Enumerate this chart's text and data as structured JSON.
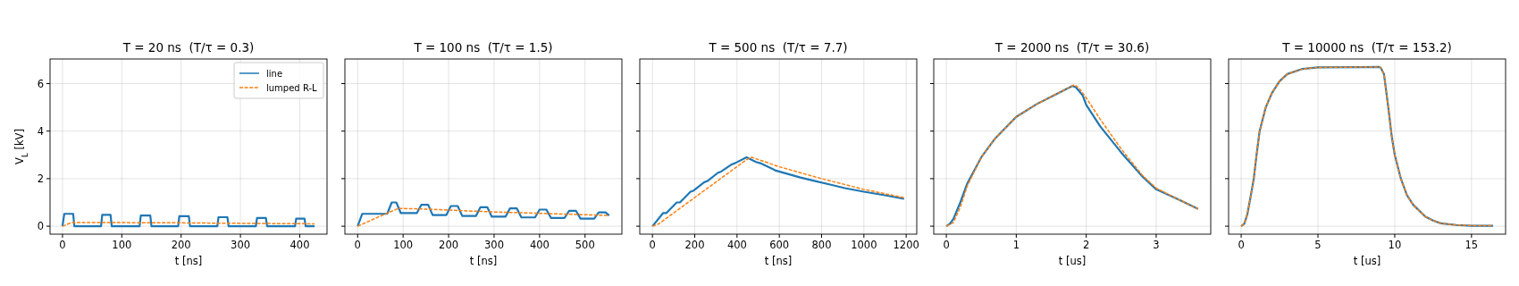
{
  "chart_data": [
    {
      "type": "line",
      "title": "T = 20 ns  (T/τ = 0.3)",
      "xlabel": "t [ns]",
      "ylabel": "V$_{L}$ [kV]",
      "xlim": [
        -21,
        446
      ],
      "ylim": [
        -0.335,
        7.035
      ],
      "xticks": [
        0,
        100,
        200,
        300,
        400
      ],
      "yticks": [
        0,
        2,
        4,
        6
      ],
      "grid": true,
      "legend": "top right",
      "series": [
        {
          "name": "line",
          "color": "#1f77b4",
          "line_style": "solid",
          "x": [
            0,
            3,
            18,
            20,
            65,
            67,
            81,
            83,
            130,
            132,
            148,
            150,
            195,
            197,
            213,
            215,
            261,
            263,
            278,
            280,
            326,
            328,
            343,
            345,
            392,
            394,
            408,
            410,
            425
          ],
          "values": [
            0,
            0.52,
            0.52,
            0,
            0,
            0.48,
            0.48,
            0,
            0,
            0.45,
            0.45,
            0,
            0,
            0.42,
            0.42,
            0,
            0,
            0.38,
            0.38,
            0,
            0,
            0.35,
            0.35,
            0,
            0,
            0.32,
            0.32,
            0,
            0
          ]
        },
        {
          "name": "lumped R-L",
          "color": "#ff7f0e",
          "line_style": "dashed",
          "x": [
            0,
            15,
            100,
            200,
            300,
            425
          ],
          "values": [
            0,
            0.15,
            0.15,
            0.14,
            0.12,
            0.1
          ]
        }
      ]
    },
    {
      "type": "line",
      "title": "T = 100 ns  (T/τ = 1.5)",
      "xlabel": "t [ns]",
      "xlim": [
        -28,
        581
      ],
      "ylim": [
        -0.335,
        7.035
      ],
      "xticks": [
        0,
        100,
        200,
        300,
        400,
        500
      ],
      "yticks": [
        0,
        2,
        4,
        6
      ],
      "grid": true,
      "tick_labels": "x",
      "series": [
        {
          "color": "#1f77b4",
          "line_style": "solid",
          "x": [
            0,
            10,
            65,
            75,
            85,
            95,
            130,
            140,
            155,
            165,
            195,
            205,
            220,
            230,
            260,
            270,
            285,
            295,
            325,
            335,
            350,
            360,
            390,
            400,
            415,
            425,
            455,
            465,
            480,
            490,
            520,
            530,
            545,
            553
          ],
          "values": [
            0,
            0.52,
            0.52,
            1.0,
            1.0,
            0.55,
            0.55,
            0.9,
            0.9,
            0.47,
            0.47,
            0.85,
            0.85,
            0.43,
            0.43,
            0.8,
            0.8,
            0.4,
            0.4,
            0.75,
            0.75,
            0.37,
            0.37,
            0.7,
            0.7,
            0.35,
            0.35,
            0.65,
            0.65,
            0.32,
            0.32,
            0.58,
            0.58,
            0.45
          ]
        },
        {
          "color": "#ff7f0e",
          "line_style": "dashed",
          "x": [
            0,
            65,
            90,
            150,
            300,
            553
          ],
          "values": [
            0,
            0.55,
            0.75,
            0.72,
            0.6,
            0.45
          ]
        }
      ]
    },
    {
      "type": "line",
      "title": "T = 500 ns  (T/τ = 7.7)",
      "xlabel": "t [ns]",
      "xlim": [
        -60,
        1250
      ],
      "ylim": [
        -0.335,
        7.035
      ],
      "xticks": [
        0,
        200,
        400,
        600,
        800,
        1000,
        1200
      ],
      "yticks": [
        0,
        2,
        4,
        6
      ],
      "grid": true,
      "tick_labels": "x",
      "series": [
        {
          "color": "#1f77b4",
          "line_style": "solid",
          "x": [
            0,
            50,
            65,
            115,
            130,
            180,
            195,
            245,
            260,
            310,
            325,
            375,
            390,
            445,
            490,
            510,
            570,
            580,
            640,
            700,
            770,
            840,
            910,
            1000,
            1100,
            1190
          ],
          "values": [
            0,
            0.55,
            0.55,
            1.0,
            1.0,
            1.45,
            1.5,
            1.85,
            1.9,
            2.25,
            2.3,
            2.6,
            2.65,
            2.9,
            2.7,
            2.65,
            2.4,
            2.35,
            2.2,
            2.05,
            1.9,
            1.75,
            1.6,
            1.45,
            1.3,
            1.15
          ]
        },
        {
          "color": "#ff7f0e",
          "line_style": "dashed",
          "x": [
            0,
            30,
            445,
            470,
            600,
            800,
            1000,
            1190
          ],
          "values": [
            0,
            0.1,
            2.8,
            2.9,
            2.5,
            2.0,
            1.55,
            1.2
          ]
        }
      ]
    },
    {
      "type": "line",
      "title": "T = 2000 ns  (T/τ = 30.6)",
      "xlabel": "t [us]",
      "xlim": [
        -0.18,
        3.78
      ],
      "ylim": [
        -0.335,
        7.035
      ],
      "xticks": [
        0,
        1,
        2,
        3
      ],
      "yticks": [
        0,
        2,
        4,
        6
      ],
      "grid": true,
      "tick_labels": "x",
      "series": [
        {
          "color": "#1f77b4",
          "line_style": "solid",
          "x": [
            0,
            0.05,
            0.1,
            0.2,
            0.3,
            0.5,
            0.7,
            1.0,
            1.3,
            1.6,
            1.8,
            1.85,
            1.95,
            2.0,
            2.2,
            2.5,
            2.8,
            3.0,
            3.3,
            3.6
          ],
          "values": [
            0,
            0.1,
            0.3,
            1.0,
            1.8,
            2.9,
            3.7,
            4.6,
            5.15,
            5.6,
            5.9,
            5.85,
            5.5,
            5.1,
            4.2,
            3.1,
            2.1,
            1.55,
            1.15,
            0.73
          ]
        },
        {
          "color": "#ff7f0e",
          "line_style": "dashed",
          "x": [
            0,
            0.1,
            0.2,
            0.3,
            0.5,
            0.7,
            1.0,
            1.3,
            1.6,
            1.83,
            1.9,
            2.0,
            2.2,
            2.5,
            2.8,
            3.0,
            3.3,
            3.6
          ],
          "values": [
            0,
            0.15,
            0.8,
            1.7,
            2.9,
            3.7,
            4.6,
            5.15,
            5.6,
            5.95,
            5.8,
            5.4,
            4.5,
            3.25,
            2.15,
            1.6,
            1.15,
            0.73
          ]
        }
      ]
    },
    {
      "type": "line",
      "title": "T = 10000 ns  (T/τ = 153.2)",
      "xlabel": "t [us]",
      "xlim": [
        -0.82,
        17.22
      ],
      "ylim": [
        -0.335,
        7.035
      ],
      "xticks": [
        0,
        5,
        10,
        15
      ],
      "yticks": [
        0,
        2,
        4,
        6
      ],
      "grid": true,
      "tick_labels": "x",
      "series": [
        {
          "color": "#1f77b4",
          "line_style": "solid",
          "x": [
            0,
            0.2,
            0.4,
            0.6,
            0.82,
            1.0,
            1.2,
            1.6,
            2,
            2.5,
            3,
            4,
            5,
            9,
            9.1,
            9.3,
            9.6,
            9.8,
            10.0,
            10.4,
            10.8,
            11.2,
            12,
            12.5,
            13,
            14,
            15,
            16.4
          ],
          "values": [
            0,
            0.1,
            0.5,
            1.2,
            2.0,
            3.0,
            4.0,
            5.0,
            5.6,
            6.1,
            6.4,
            6.62,
            6.68,
            6.7,
            6.65,
            6.4,
            4.9,
            3.8,
            3.0,
            2.0,
            1.3,
            0.9,
            0.4,
            0.24,
            0.12,
            0.05,
            0.02,
            0.02
          ]
        },
        {
          "color": "#ff7f0e",
          "line_style": "dashed",
          "x": [
            0,
            0.2,
            0.4,
            0.6,
            0.82,
            1.0,
            1.2,
            1.6,
            2,
            2.5,
            3,
            4,
            5,
            9,
            9.1,
            9.3,
            9.6,
            9.8,
            10.0,
            10.4,
            10.8,
            11.2,
            12,
            12.5,
            13,
            14,
            15,
            16.4
          ],
          "values": [
            0,
            0.1,
            0.5,
            1.2,
            2.0,
            3.0,
            4.0,
            5.0,
            5.6,
            6.1,
            6.4,
            6.62,
            6.68,
            6.7,
            6.65,
            6.4,
            4.9,
            3.8,
            3.0,
            2.0,
            1.3,
            0.9,
            0.4,
            0.24,
            0.12,
            0.05,
            0.02,
            0.02
          ]
        }
      ]
    }
  ]
}
